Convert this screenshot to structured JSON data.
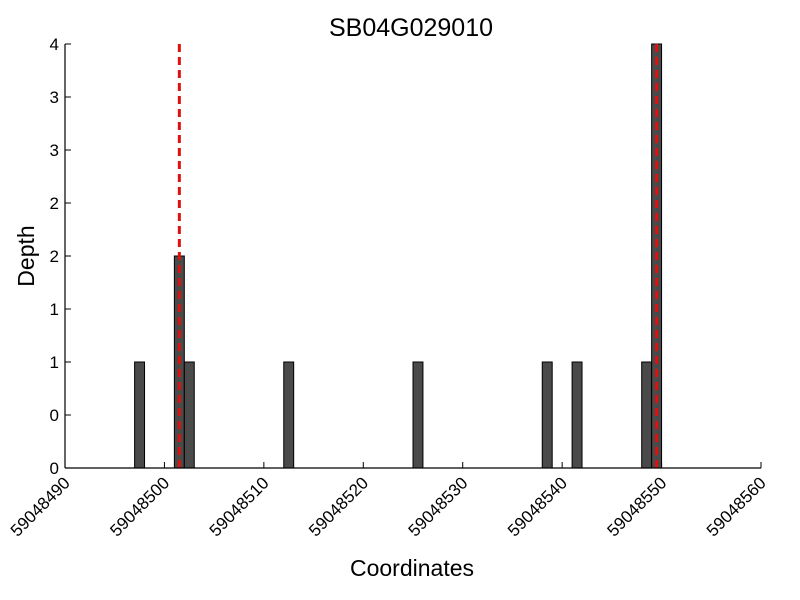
{
  "chart_data": {
    "type": "bar",
    "title": "SB04G029010",
    "xlabel": "Coordinates",
    "ylabel": "Depth",
    "xlim": [
      59048490,
      59048560
    ],
    "ylim": [
      0,
      4
    ],
    "x_ticks": [
      "59048490",
      "59048500",
      "59048510",
      "59048520",
      "59048530",
      "59048540",
      "59048550",
      "59048560"
    ],
    "y_ticks": [
      "0",
      "0",
      "1",
      "1",
      "2",
      "2",
      "3",
      "3",
      "4"
    ],
    "grid": false,
    "legend": "none",
    "bar_color": "#4a4a4a",
    "marker_color": "#e01010",
    "bars": [
      {
        "x": 59048497,
        "value": 1
      },
      {
        "x": 59048501,
        "value": 2
      },
      {
        "x": 59048502,
        "value": 1
      },
      {
        "x": 59048512,
        "value": 1
      },
      {
        "x": 59048525,
        "value": 1
      },
      {
        "x": 59048538,
        "value": 1
      },
      {
        "x": 59048541,
        "value": 1
      },
      {
        "x": 59048548,
        "value": 1
      },
      {
        "x": 59048549,
        "value": 4
      }
    ],
    "markers": [
      59048501.5,
      59048549.5
    ]
  }
}
